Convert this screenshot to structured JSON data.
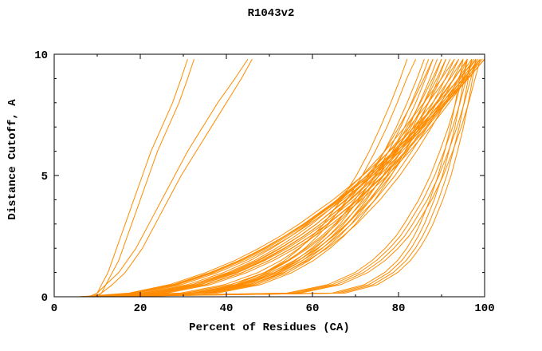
{
  "chart_data": {
    "type": "line",
    "title": "R1043v2",
    "xlabel": "Percent of Residues (CA)",
    "ylabel": "Distance Cutoff, A",
    "xlim": [
      0,
      100
    ],
    "ylim": [
      0,
      10
    ],
    "x_ticks": [
      0,
      20,
      40,
      60,
      80,
      100
    ],
    "y_ticks": [
      0,
      5,
      10
    ],
    "x_minor_step": 10,
    "y_minor_step": 1,
    "grid": false,
    "legend": "none",
    "line_color": "#ff8c00",
    "axis_color": "#000000",
    "background": "#ffffff",
    "y_grid": [
      0,
      0.15,
      0.5,
      1,
      1.5,
      2,
      2.5,
      3,
      4,
      5,
      6,
      7,
      8,
      9,
      9.8
    ],
    "series": [
      [
        9,
        10,
        11,
        12.5,
        13.5,
        14.5,
        15.5,
        16.5,
        18.5,
        20.5,
        22.5,
        25,
        27.5,
        29.5,
        31
      ],
      [
        10,
        11,
        12,
        13.5,
        15,
        16,
        17,
        18,
        20,
        22,
        24,
        26.5,
        29,
        31,
        32.5
      ],
      [
        8,
        10,
        12,
        15,
        17,
        19,
        20.5,
        22,
        25,
        28,
        31,
        34.5,
        38,
        42,
        45
      ],
      [
        9,
        11,
        13.5,
        16.5,
        18.5,
        20.5,
        22,
        23.5,
        26.5,
        29.5,
        33,
        36.5,
        40,
        43.5,
        46
      ],
      [
        6,
        34.2,
        44,
        51.2,
        56.1,
        59.8,
        62.9,
        65.5,
        69.9,
        73.6,
        76.7,
        79.5,
        82,
        84.3,
        86
      ],
      [
        7,
        35.5,
        45.5,
        52.8,
        57.7,
        61.4,
        64.6,
        67.3,
        71.7,
        75.4,
        78.6,
        81.4,
        84,
        86.3,
        88
      ],
      [
        8,
        36.9,
        47,
        54.3,
        59.3,
        63.1,
        66.3,
        69,
        73.5,
        77.3,
        80.5,
        83.4,
        85.9,
        88.3,
        90
      ],
      [
        6.5,
        34.8,
        44.7,
        52,
        56.9,
        60.6,
        63.7,
        66.4,
        70.8,
        74.5,
        77.7,
        80.5,
        83,
        85.3,
        87
      ],
      [
        9,
        37.9,
        48,
        55.3,
        60.3,
        64.1,
        67.3,
        70,
        74.5,
        78.3,
        81.5,
        84.4,
        86.9,
        89.3,
        91
      ],
      [
        7.5,
        36.2,
        46.2,
        53.5,
        58.5,
        62.3,
        65.4,
        68.1,
        72.6,
        76.4,
        79.6,
        82.4,
        84.9,
        87.3,
        89
      ],
      [
        6,
        32.8,
        42.1,
        48.9,
        53.6,
        57.1,
        60,
        62.6,
        66.7,
        70.2,
        73.2,
        75.8,
        78.2,
        80.4,
        82
      ],
      [
        7,
        33.4,
        42.9,
        49.8,
        54.6,
        58.2,
        61.2,
        63.8,
        68,
        71.6,
        74.6,
        77.3,
        79.7,
        81.9,
        84
      ],
      [
        6,
        29.4,
        39.6,
        47.4,
        52.7,
        56.9,
        60.4,
        63.5,
        68.6,
        73,
        76.8,
        80.1,
        83.2,
        85.9,
        88
      ],
      [
        7,
        30.7,
        41,
        48.9,
        54.2,
        58.5,
        62.1,
        65.2,
        70.4,
        74.8,
        78.6,
        82,
        85.1,
        87.9,
        90
      ],
      [
        8,
        31.9,
        42.4,
        50.4,
        55.8,
        60.2,
        63.8,
        66.9,
        72.2,
        76.6,
        80.5,
        83.9,
        87,
        89.9,
        92
      ],
      [
        6.5,
        30.6,
        41.1,
        49.2,
        54.6,
        59,
        62.6,
        65.7,
        71.1,
        75.5,
        79.4,
        82.9,
        86,
        88.9,
        91
      ],
      [
        9,
        32.9,
        43.4,
        51.4,
        56.8,
        61.2,
        64.8,
        67.9,
        73.2,
        77.6,
        81.5,
        84.9,
        88,
        90.9,
        93
      ],
      [
        7.5,
        32.2,
        43,
        51.2,
        56.7,
        61.2,
        64.9,
        68.1,
        73.6,
        78.2,
        82.1,
        85.7,
        88.9,
        91.8,
        94
      ],
      [
        8.5,
        33.2,
        44,
        52.2,
        57.7,
        62.2,
        65.9,
        69.1,
        74.6,
        79.2,
        83.1,
        86.7,
        89.9,
        92.8,
        95
      ],
      [
        10,
        34.5,
        45.3,
        53.4,
        58.9,
        63.4,
        67.1,
        70.3,
        75.7,
        80.3,
        84.2,
        87.7,
        90.9,
        93.9,
        96
      ],
      [
        6,
        21.1,
        31,
        39.4,
        45.6,
        50.6,
        55,
        58.9,
        65.7,
        71.6,
        76.8,
        81.5,
        85.9,
        90,
        93
      ],
      [
        7,
        22.1,
        32,
        40.4,
        46.6,
        51.6,
        56,
        59.9,
        66.7,
        72.6,
        77.8,
        82.5,
        86.9,
        91,
        94
      ],
      [
        8,
        23.1,
        33,
        41.4,
        47.6,
        52.6,
        57,
        60.9,
        67.7,
        73.6,
        78.8,
        83.5,
        87.9,
        92,
        95
      ],
      [
        6.5,
        22,
        32.2,
        40.9,
        47.2,
        52.4,
        56.9,
        60.9,
        67.9,
        74,
        79.3,
        84.2,
        88.7,
        92.9,
        96
      ],
      [
        9,
        24.1,
        34,
        42.4,
        48.6,
        53.6,
        58,
        61.9,
        68.7,
        74.6,
        79.8,
        84.5,
        88.9,
        93,
        96
      ],
      [
        7.5,
        23,
        33.2,
        41.9,
        48.2,
        53.4,
        57.9,
        61.9,
        68.9,
        75,
        80.3,
        85.2,
        89.7,
        93.9,
        97
      ],
      [
        8.5,
        23.9,
        34,
        42.7,
        49,
        54.2,
        58.6,
        62.6,
        69.6,
        75.6,
        80.9,
        85.7,
        90.2,
        94.4,
        97.5
      ],
      [
        10,
        25.2,
        35.3,
        43.8,
        50,
        55.1,
        59.5,
        63.5,
        70.4,
        76.4,
        81.6,
        86.4,
        90.8,
        94.9,
        98
      ],
      [
        9.5,
        24.9,
        35,
        43.7,
        50,
        55.2,
        59.6,
        63.6,
        70.6,
        76.6,
        81.9,
        86.7,
        91.2,
        95.4,
        98.5
      ],
      [
        11,
        26.2,
        36.3,
        44.8,
        51,
        56.1,
        60.5,
        64.5,
        71.4,
        77.4,
        82.6,
        87.4,
        91.8,
        95.9,
        99
      ],
      [
        6,
        17.4,
        26.8,
        35.3,
        42,
        47.6,
        52.5,
        56.9,
        64.8,
        71.7,
        77.9,
        83.7,
        89.1,
        94.1,
        98
      ],
      [
        7,
        18.4,
        27.8,
        36.3,
        43,
        48.6,
        53.5,
        57.9,
        65.8,
        72.7,
        78.9,
        84.7,
        90.1,
        95.1,
        99
      ],
      [
        8,
        19.3,
        28.7,
        37.2,
        43.8,
        49.4,
        54.2,
        58.6,
        66.5,
        73.3,
        79.6,
        85.3,
        90.6,
        95.7,
        99.5
      ],
      [
        6.5,
        18.1,
        27.6,
        36.3,
        43.1,
        48.8,
        53.7,
        58.2,
        66.2,
        73.3,
        79.6,
        85.5,
        90.9,
        96.1,
        100
      ],
      [
        9,
        20.3,
        29.6,
        38,
        44.6,
        50.1,
        55,
        59.3,
        67.1,
        74,
        80.2,
        85.9,
        91.2,
        96.2,
        100
      ],
      [
        7.5,
        18.8,
        28.2,
        36.7,
        43.3,
        48.9,
        53.7,
        58.1,
        66,
        72.8,
        79.1,
        84.8,
        90.1,
        95.2,
        99
      ],
      [
        6,
        64.6,
        72.1,
        76.8,
        79.8,
        81.9,
        83.6,
        85,
        87.3,
        89.2,
        90.7,
        92.1,
        93.2,
        94.2,
        95
      ],
      [
        7,
        65.6,
        73.1,
        77.8,
        80.8,
        82.9,
        84.6,
        86,
        88.3,
        90.2,
        91.7,
        93.1,
        94.2,
        95.2,
        96
      ],
      [
        8,
        66.6,
        74.1,
        78.8,
        81.8,
        83.9,
        85.6,
        87,
        89.3,
        91.2,
        92.7,
        94.1,
        95.2,
        96.2,
        97
      ],
      [
        6,
        54.1,
        63.6,
        69.9,
        73.9,
        76.9,
        79.4,
        81.3,
        84.7,
        87.4,
        89.6,
        91.6,
        93.3,
        94.8,
        96
      ],
      [
        7,
        55.1,
        64.6,
        70.9,
        74.9,
        77.9,
        80.4,
        82.3,
        85.7,
        88.4,
        90.6,
        92.6,
        94.3,
        95.8,
        97
      ],
      [
        8,
        56.1,
        65.6,
        71.9,
        75.9,
        78.9,
        81.4,
        83.3,
        86.7,
        89.4,
        91.6,
        93.6,
        95.3,
        96.8,
        98
      ],
      [
        9,
        67.6,
        75.1,
        79.8,
        82.8,
        84.9,
        86.6,
        88,
        90.3,
        92.2,
        93.7,
        95.1,
        96.2,
        97.2,
        98
      ],
      [
        9,
        57.1,
        66.6,
        72.9,
        76.9,
        79.9,
        82.4,
        84.3,
        87.7,
        90.4,
        92.6,
        94.6,
        96.3,
        97.8,
        99
      ]
    ]
  }
}
